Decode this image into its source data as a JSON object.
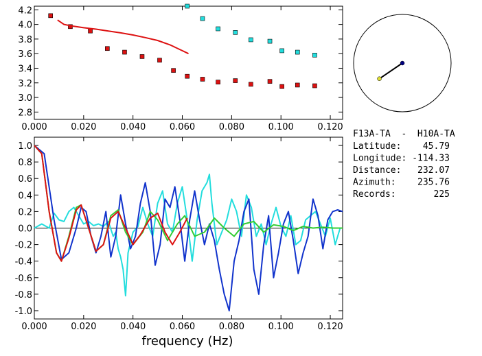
{
  "station_info": {
    "pair": "F13A-TA  -  H10A-TA",
    "rows": [
      {
        "label": "Latitude:",
        "value": "45.79"
      },
      {
        "label": "Longitude:",
        "value": "-114.33"
      },
      {
        "label": "Distance:",
        "value": "232.07"
      },
      {
        "label": "Azimuth:",
        "value": "235.76"
      },
      {
        "label": "Records:",
        "value": "225"
      }
    ]
  },
  "colors": {
    "red": "#dd1111",
    "cyan": "#22dddd",
    "blue": "#1133cc",
    "green": "#33cc33",
    "yellow": "#dddd33",
    "navy": "#000080"
  },
  "chart_data": [
    {
      "type": "scatter",
      "xlim": [
        0.0,
        0.125
      ],
      "ylim": [
        2.7,
        4.25
      ],
      "xticks": [
        "0.000",
        "0.020",
        "0.040",
        "0.060",
        "0.080",
        "0.100",
        "0.120"
      ],
      "yticks": [
        "2.8",
        "3.0",
        "3.2",
        "3.4",
        "3.6",
        "3.8",
        "4.0",
        "4.2"
      ],
      "series": [
        {
          "color": "#dd1111",
          "kind": "markers",
          "x": [
            0.0066,
            0.0146,
            0.0227,
            0.0296,
            0.0366,
            0.0437,
            0.0508,
            0.0564,
            0.062,
            0.0682,
            0.0745,
            0.0815,
            0.0878,
            0.0955,
            0.1004,
            0.1067,
            0.1137
          ],
          "y": [
            4.12,
            3.97,
            3.91,
            3.67,
            3.62,
            3.56,
            3.51,
            3.37,
            3.29,
            3.25,
            3.21,
            3.23,
            3.18,
            3.22,
            3.15,
            3.17,
            3.16
          ]
        },
        {
          "color": "#22dddd",
          "kind": "markers",
          "x": [
            0.062,
            0.0682,
            0.0745,
            0.0815,
            0.0878,
            0.0955,
            0.1004,
            0.1067,
            0.1137
          ],
          "y": [
            4.25,
            4.08,
            3.94,
            3.89,
            3.79,
            3.77,
            3.64,
            3.62,
            3.58
          ]
        },
        {
          "color": "#dd1111",
          "kind": "line",
          "x": [
            0.0094,
            0.012,
            0.015,
            0.02,
            0.025,
            0.03,
            0.035,
            0.04,
            0.045,
            0.05,
            0.055,
            0.06,
            0.0625
          ],
          "y": [
            4.06,
            4.0,
            3.98,
            3.955,
            3.935,
            3.91,
            3.885,
            3.855,
            3.82,
            3.78,
            3.72,
            3.64,
            3.6
          ]
        }
      ]
    },
    {
      "type": "line",
      "xlim": [
        0.0,
        0.125
      ],
      "ylim": [
        -1.1,
        1.1
      ],
      "xticks": [
        "0.000",
        "0.020",
        "0.040",
        "0.060",
        "0.080",
        "0.100",
        "0.120"
      ],
      "yticks": [
        "-1.0",
        "-0.8",
        "-0.6",
        "-0.4",
        "-0.2",
        "0.0",
        "0.2",
        "0.4",
        "0.6",
        "0.8",
        "1.0"
      ],
      "xlabel": "frequency (Hz)",
      "series": [
        {
          "color": "#22dddd",
          "x": [
            0.0,
            0.003,
            0.006,
            0.008,
            0.01,
            0.012,
            0.014,
            0.016,
            0.018,
            0.02,
            0.022,
            0.024,
            0.026,
            0.028,
            0.03,
            0.032,
            0.033,
            0.034,
            0.035,
            0.036,
            0.037,
            0.038,
            0.04,
            0.042,
            0.044,
            0.046,
            0.048,
            0.05,
            0.052,
            0.054,
            0.056,
            0.058,
            0.06,
            0.062,
            0.064,
            0.066,
            0.068,
            0.07,
            0.071,
            0.072,
            0.074,
            0.076,
            0.078,
            0.08,
            0.082,
            0.084,
            0.086,
            0.088,
            0.09,
            0.092,
            0.094,
            0.096,
            0.098,
            0.1,
            0.102,
            0.104,
            0.106,
            0.108,
            0.11,
            0.112,
            0.114,
            0.116,
            0.118,
            0.12,
            0.122,
            0.124
          ],
          "y": [
            0.0,
            0.05,
            0.0,
            0.18,
            0.1,
            0.08,
            0.2,
            0.25,
            0.15,
            0.05,
            0.08,
            0.03,
            0.05,
            0.02,
            0.08,
            -0.1,
            -0.05,
            -0.25,
            -0.35,
            -0.5,
            -0.82,
            -0.3,
            -0.05,
            0.02,
            0.25,
            0.05,
            -0.1,
            0.3,
            0.45,
            0.05,
            -0.05,
            0.3,
            0.5,
            0.1,
            -0.4,
            0.1,
            0.45,
            0.55,
            0.65,
            0.3,
            -0.2,
            -0.05,
            0.1,
            0.35,
            0.2,
            -0.1,
            0.4,
            0.25,
            -0.1,
            0.05,
            -0.2,
            0.05,
            0.25,
            0.02,
            -0.1,
            0.15,
            -0.2,
            -0.15,
            0.1,
            0.15,
            0.2,
            0.05,
            -0.1,
            0.12,
            -0.2,
            0.0
          ]
        },
        {
          "color": "#1133cc",
          "x": [
            0.0,
            0.004,
            0.008,
            0.011,
            0.014,
            0.017,
            0.019,
            0.021,
            0.023,
            0.025,
            0.027,
            0.029,
            0.031,
            0.033,
            0.035,
            0.037,
            0.039,
            0.041,
            0.043,
            0.045,
            0.047,
            0.049,
            0.051,
            0.053,
            0.055,
            0.057,
            0.059,
            0.061,
            0.063,
            0.065,
            0.067,
            0.069,
            0.071,
            0.073,
            0.075,
            0.077,
            0.079,
            0.081,
            0.083,
            0.085,
            0.087,
            0.089,
            0.091,
            0.093,
            0.095,
            0.097,
            0.099,
            0.101,
            0.103,
            0.105,
            0.107,
            0.109,
            0.111,
            0.113,
            0.115,
            0.117,
            0.119,
            0.121,
            0.123,
            0.125
          ],
          "y": [
            1.0,
            0.9,
            0.1,
            -0.38,
            -0.3,
            0.0,
            0.25,
            0.2,
            -0.1,
            -0.3,
            -0.1,
            0.2,
            -0.35,
            -0.1,
            0.4,
            0.05,
            -0.25,
            -0.1,
            0.3,
            0.55,
            0.2,
            -0.45,
            -0.2,
            0.35,
            0.25,
            0.5,
            0.1,
            -0.4,
            0.1,
            0.45,
            0.1,
            -0.2,
            0.05,
            -0.15,
            -0.5,
            -0.8,
            -1.0,
            -0.4,
            -0.15,
            0.2,
            0.35,
            -0.5,
            -0.8,
            -0.2,
            0.15,
            -0.6,
            -0.3,
            0.05,
            0.2,
            -0.15,
            -0.55,
            -0.3,
            -0.1,
            0.35,
            0.15,
            -0.25,
            0.1,
            0.2,
            0.22,
            0.2
          ]
        },
        {
          "color": "#33cc33",
          "x": [
            0.0,
            0.003,
            0.006,
            0.009,
            0.011,
            0.014,
            0.017,
            0.019,
            0.022,
            0.025,
            0.028,
            0.031,
            0.034,
            0.037,
            0.04,
            0.044,
            0.047,
            0.05,
            0.054,
            0.058,
            0.061,
            0.065,
            0.069,
            0.073,
            0.077,
            0.081,
            0.085,
            0.089,
            0.093,
            0.097,
            0.101,
            0.105,
            0.109,
            0.113,
            0.117,
            0.121,
            0.125
          ],
          "y": [
            1.0,
            0.9,
            0.2,
            -0.3,
            -0.4,
            -0.1,
            0.25,
            0.28,
            0.0,
            -0.28,
            -0.2,
            0.15,
            0.22,
            -0.05,
            -0.2,
            -0.05,
            0.2,
            0.1,
            -0.15,
            0.05,
            0.15,
            -0.1,
            -0.05,
            0.12,
            0.0,
            -0.1,
            0.05,
            0.08,
            -0.05,
            0.04,
            0.02,
            -0.03,
            0.02,
            0.0,
            0.01,
            0.0,
            0.0
          ]
        },
        {
          "color": "#dd1111",
          "x": [
            0.0,
            0.003,
            0.006,
            0.009,
            0.011,
            0.014,
            0.017,
            0.019,
            0.022,
            0.025,
            0.028,
            0.031,
            0.034,
            0.037,
            0.04,
            0.043,
            0.047,
            0.05,
            0.053,
            0.056,
            0.059,
            0.062
          ],
          "y": [
            1.0,
            0.9,
            0.2,
            -0.3,
            -0.4,
            -0.12,
            0.22,
            0.28,
            0.0,
            -0.28,
            -0.2,
            0.12,
            0.2,
            0.0,
            -0.2,
            -0.08,
            0.12,
            0.18,
            -0.05,
            -0.2,
            -0.05,
            0.12
          ]
        }
      ]
    },
    {
      "type": "polar",
      "angle_deg": 235.76,
      "radius_fraction": 0.57
    }
  ]
}
